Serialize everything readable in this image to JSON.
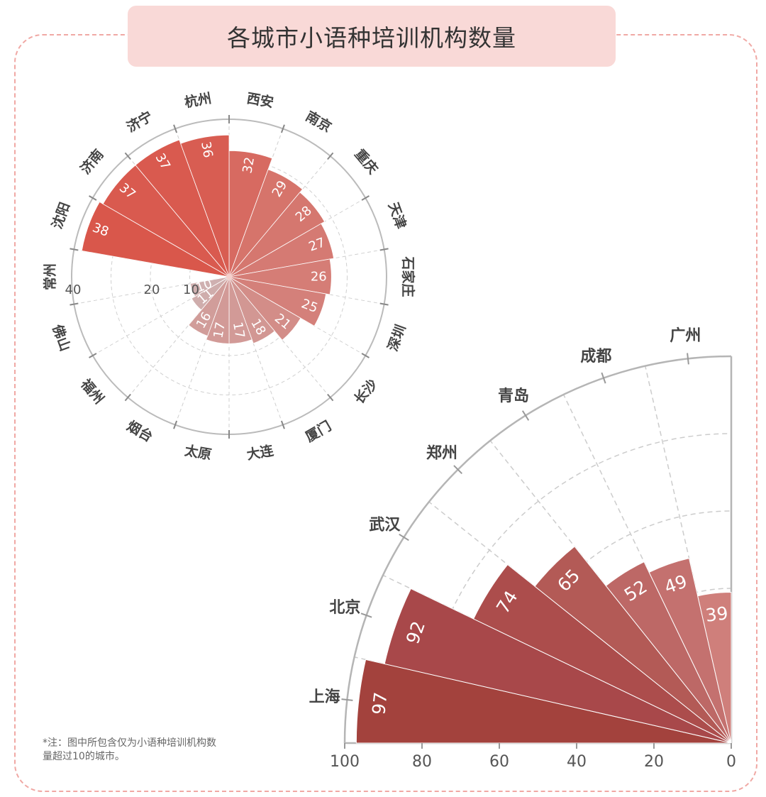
{
  "title": "各城市小语种培训机构数量",
  "note": "*注：图中所包含仅为小语种培训机构数量超过10的城市。",
  "colors": {
    "title_bg": "#f9d9d7",
    "frame": "#f0a8a4",
    "bar_strong": "#a3423d",
    "bar_light": "#e8b8b4",
    "accent": "#d9574b"
  },
  "chart_data": [
    {
      "type": "bar",
      "subtype": "polar",
      "categories": [
        "西安",
        "南京",
        "重庆",
        "天津",
        "石家庄",
        "深圳",
        "长沙",
        "厦门",
        "大连",
        "太原",
        "烟台",
        "福州",
        "佛山",
        "常州",
        "沈阳",
        "济南",
        "济宁",
        "杭州"
      ],
      "values": [
        32,
        29,
        28,
        27,
        26,
        25,
        21,
        18,
        17,
        17,
        16,
        11,
        10,
        0,
        38,
        37,
        37,
        36
      ],
      "labels": [
        "32",
        "29",
        "28",
        "27",
        "26",
        "25",
        "21",
        "18",
        "17",
        "17",
        "16",
        "11",
        "10",
        "",
        "38",
        "37",
        "37",
        "36"
      ],
      "radial_ticks": [
        "40",
        "20",
        "10"
      ],
      "rlim": [
        0,
        40
      ],
      "grid": true
    },
    {
      "type": "bar",
      "subtype": "polar-quarter",
      "categories": [
        "上海",
        "北京",
        "武汉",
        "郑州",
        "青岛",
        "成都",
        "广州"
      ],
      "values": [
        97,
        92,
        74,
        65,
        52,
        49,
        39
      ],
      "rlim": [
        0,
        100
      ],
      "ticks": [
        "100",
        "80",
        "60",
        "40",
        "20",
        "0"
      ],
      "grid": true
    }
  ]
}
